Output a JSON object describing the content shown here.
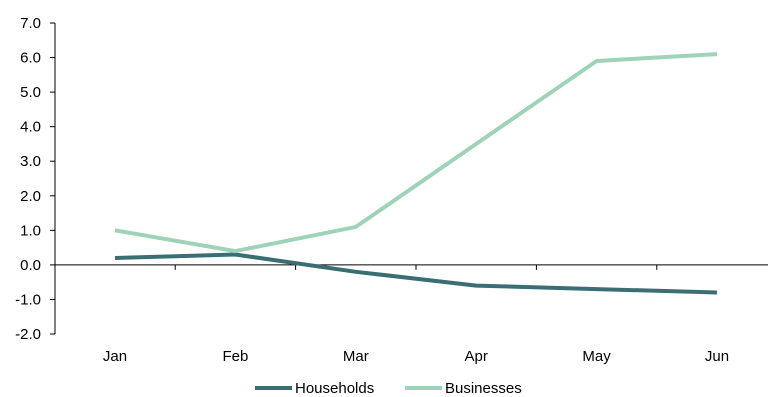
{
  "chart_data": {
    "type": "line",
    "categories": [
      "Jan",
      "Feb",
      "Mar",
      "Apr",
      "May",
      "Jun"
    ],
    "series": [
      {
        "name": "Households",
        "color": "#3a6e72",
        "values": [
          0.2,
          0.3,
          -0.2,
          -0.6,
          -0.7,
          -0.8
        ]
      },
      {
        "name": "Businesses",
        "color": "#9fd3b8",
        "values": [
          1.0,
          0.4,
          1.1,
          3.5,
          5.9,
          6.1
        ]
      }
    ],
    "y_ticks": [
      "-2.0",
      "-1.0",
      "0.0",
      "1.0",
      "2.0",
      "3.0",
      "4.0",
      "5.0",
      "6.0",
      "7.0"
    ],
    "ylim": [
      -2,
      7
    ],
    "legend_position": "bottom",
    "grid": false
  }
}
